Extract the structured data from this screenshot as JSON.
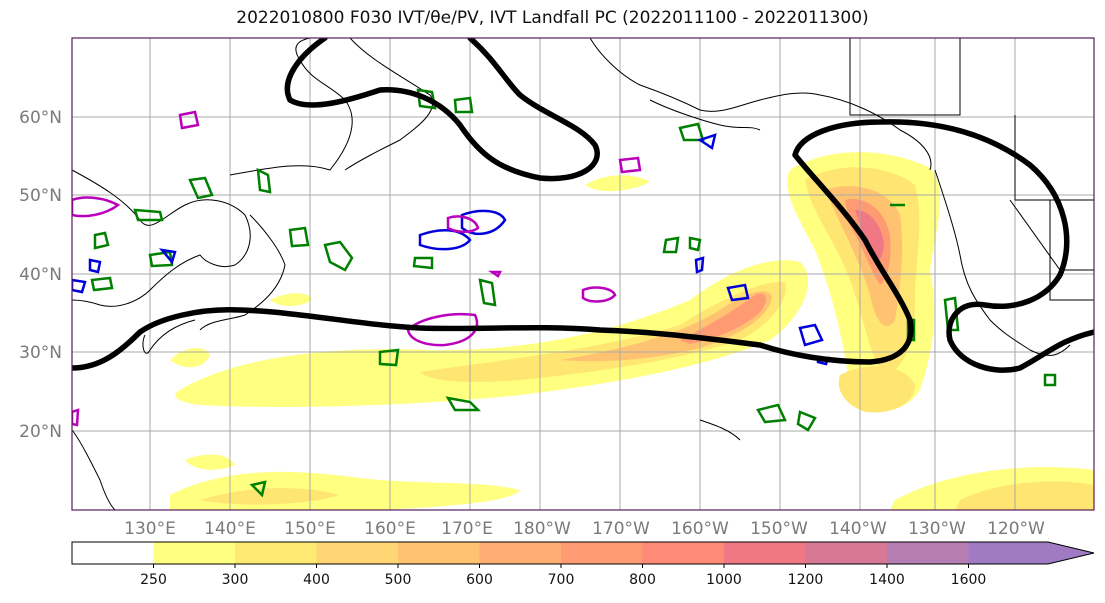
{
  "title": "2022010800 F030 IVT/θe/PV, IVT Landfall PC (2022011100 - 2022011300)",
  "map": {
    "lat_labels": [
      "60°N",
      "50°N",
      "40°N",
      "30°N",
      "20°N"
    ],
    "lon_labels": [
      "130°E",
      "140°E",
      "150°E",
      "160°E",
      "170°E",
      "180°W",
      "170°W",
      "160°W",
      "150°W",
      "140°W",
      "130°W",
      "120°W"
    ]
  },
  "colorbar": {
    "levels": [
      "250",
      "300",
      "400",
      "500",
      "600",
      "700",
      "800",
      "1000",
      "1200",
      "1400",
      "1600"
    ],
    "colors": [
      "#ffffff",
      "#ffff80",
      "#ffeb73",
      "#ffd673",
      "#ffc270",
      "#ffad73",
      "#ff9b73",
      "#ff8a78",
      "#f07885",
      "#d87897",
      "#b67eb2",
      "#a07bc4"
    ]
  },
  "colors": {
    "contour_pv": "#000000",
    "contour_green": "#008000",
    "contour_blue": "#0000dd",
    "contour_magenta": "#bb00bb"
  }
}
